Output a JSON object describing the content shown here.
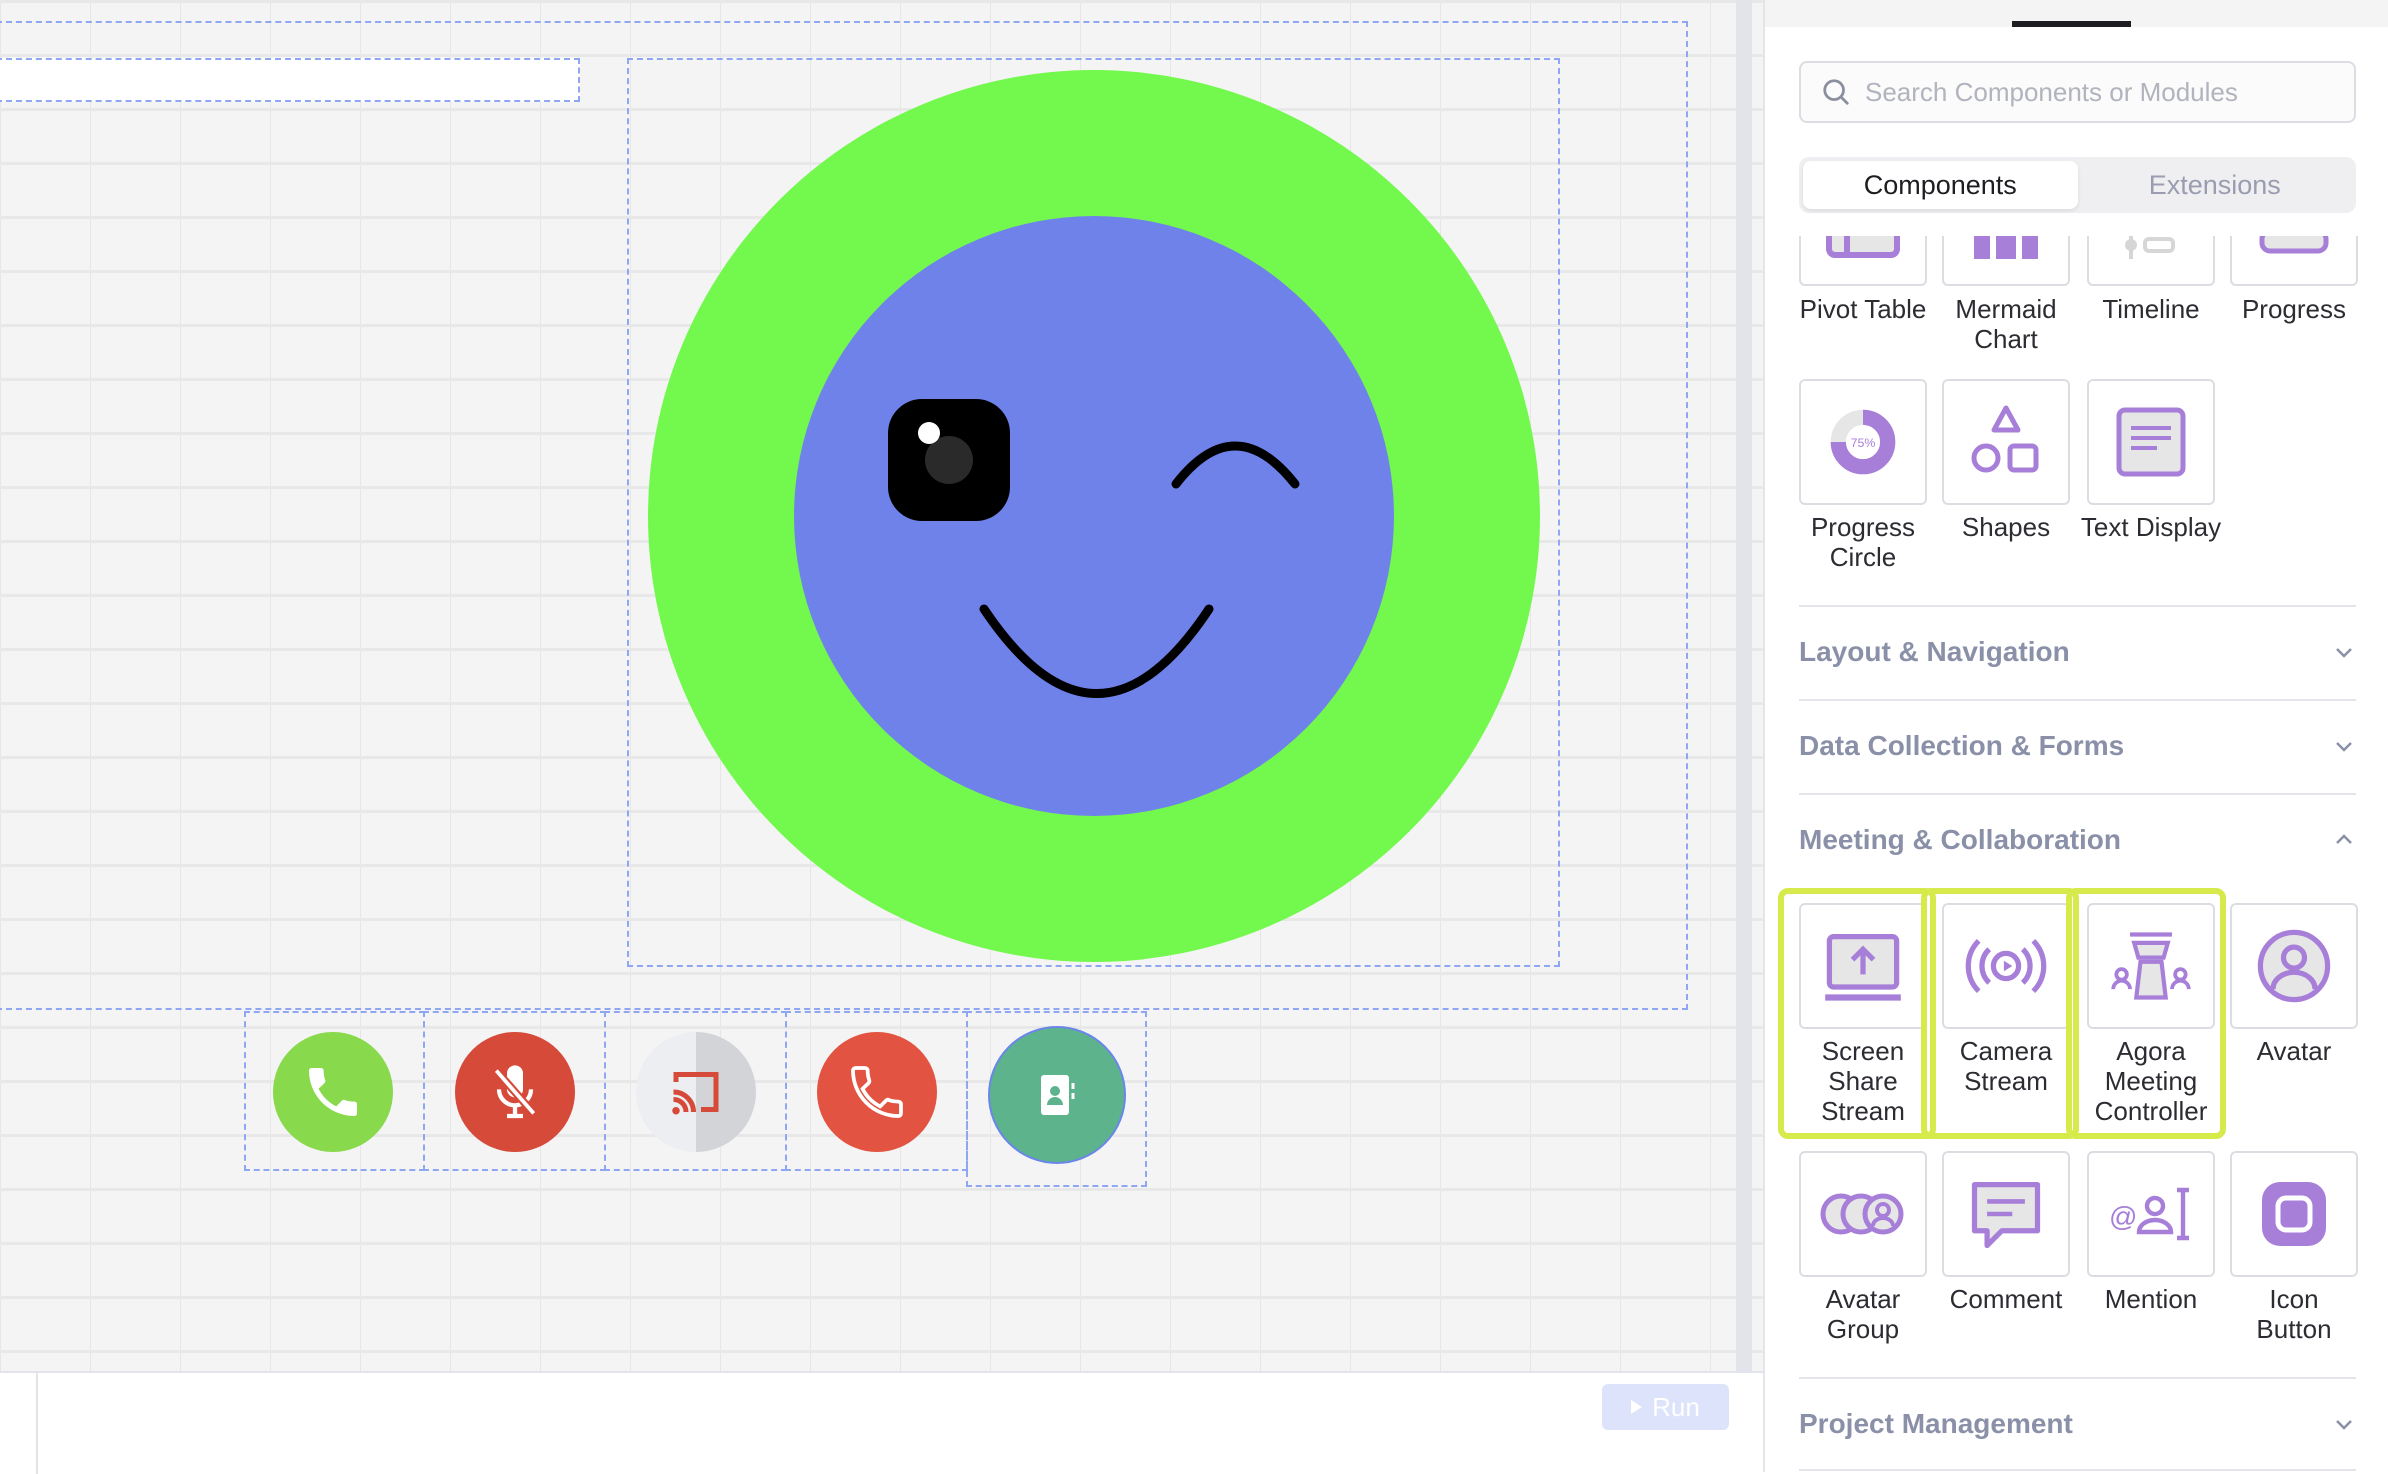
{
  "canvas": {
    "face": {
      "outer_color": "#73f84d",
      "inner_color": "#6f82ea",
      "feature_color": "#000000"
    },
    "call_controls": [
      {
        "name": "accept-call",
        "icon": "phone-icon",
        "color": "#88d94b"
      },
      {
        "name": "mute-mic",
        "icon": "mic-off-icon",
        "color": "#d64a3a"
      },
      {
        "name": "screen-cast",
        "icon": "cast-icon",
        "color": "#d3d4d7"
      },
      {
        "name": "end-call",
        "icon": "phone-icon",
        "color": "#e25441"
      },
      {
        "name": "contacts",
        "icon": "contact-book-icon",
        "color": "#5cb38c"
      }
    ]
  },
  "bottom": {
    "run_label": "Run"
  },
  "panel": {
    "search": {
      "placeholder": "Search Components or Modules"
    },
    "segments": [
      "Components",
      "Extensions"
    ],
    "components": [
      {
        "label": "Pivot Table",
        "icon": "pivot-table-icon"
      },
      {
        "label": "Mermaid Chart",
        "icon": "mermaid-chart-icon"
      },
      {
        "label": "Timeline",
        "icon": "timeline-icon"
      },
      {
        "label": "Progress",
        "icon": "progress-icon"
      },
      {
        "label": "Progress Circle",
        "icon": "progress-circle-icon",
        "icon_text": "75%"
      },
      {
        "label": "Shapes",
        "icon": "shapes-icon"
      },
      {
        "label": "Text Display",
        "icon": "text-display-icon"
      }
    ],
    "sections": [
      {
        "label": "Layout & Navigation",
        "expanded": false
      },
      {
        "label": "Data Collection & Forms",
        "expanded": false
      },
      {
        "label": "Meeting & Collaboration",
        "expanded": true
      },
      {
        "label": "Project Management",
        "expanded": false
      }
    ],
    "meeting": [
      {
        "label": "Screen Share Stream",
        "icon": "screen-share-icon",
        "highlighted": true
      },
      {
        "label": "Camera Stream",
        "icon": "camera-stream-icon",
        "highlighted": true
      },
      {
        "label": "Agora Meeting Controller",
        "icon": "meeting-controller-icon",
        "highlighted": true
      },
      {
        "label": "Avatar",
        "icon": "avatar-icon",
        "highlighted": false
      },
      {
        "label": "Avatar Group",
        "icon": "avatar-group-icon",
        "highlighted": false
      },
      {
        "label": "Comment",
        "icon": "comment-icon",
        "highlighted": false
      },
      {
        "label": "Mention",
        "icon": "mention-icon",
        "highlighted": false
      },
      {
        "label": "Icon Button",
        "icon": "icon-button-icon",
        "highlighted": false
      }
    ],
    "accent": "#a77fd9",
    "highlight_color": "#d6ea4c"
  }
}
